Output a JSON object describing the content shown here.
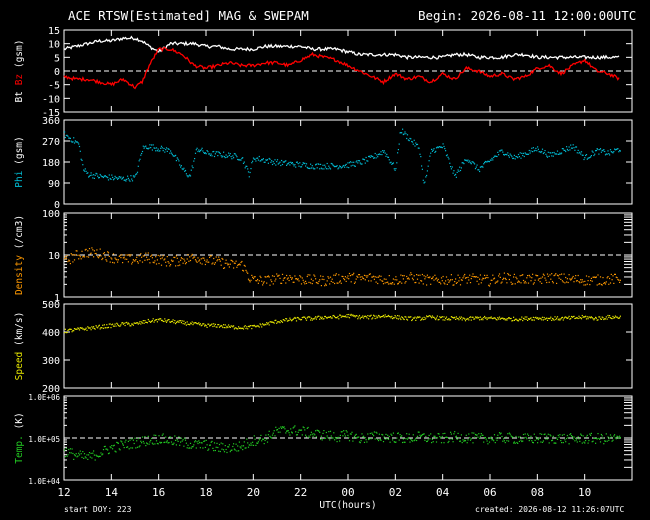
{
  "header": {
    "title": "ACE RTSW[Estimated] MAG & SWEPAM",
    "begin": "Begin: 2026-08-11 12:00:00UTC"
  },
  "footer": {
    "start_doy": "start DOY: 223",
    "created": "created: 2026-08-12 11:26:07UTC"
  },
  "colors": {
    "background": "#000000",
    "axes": "#ffffff",
    "bt": "#ffffff",
    "bz": "#ff0000",
    "phi": "#00bcd4",
    "density": "#ff9900",
    "speed": "#e6e600",
    "temp": "#22cc22"
  },
  "chart_data": [
    {
      "type": "line",
      "id": "mag",
      "ylabel_parts": [
        "Bt",
        "Bz",
        "(gsm)"
      ],
      "ylim": [
        -15,
        15
      ],
      "yticks": [
        15,
        10,
        5,
        0,
        -5,
        -10,
        -15
      ],
      "ref_line": 0,
      "series": [
        {
          "name": "Bt",
          "x": [
            0,
            0.5,
            1,
            1.5,
            2,
            2.5,
            3,
            3.3,
            3.6,
            4,
            4.5,
            5,
            5.5,
            6,
            6.5,
            7,
            7.5,
            8,
            8.5,
            9,
            9.5,
            10,
            10.5,
            11,
            11.5,
            12,
            12.5,
            13,
            13.5,
            14,
            14.5,
            15,
            15.5,
            16,
            16.5,
            17,
            17.5,
            18,
            18.5,
            19,
            19.5,
            20,
            20.5,
            21,
            21.5,
            22,
            22.5,
            23,
            23.5
          ],
          "values": [
            8,
            9,
            10,
            11,
            11,
            12,
            12,
            11,
            9,
            7,
            10,
            10,
            10,
            9,
            9,
            8,
            8,
            8,
            9,
            9,
            9,
            9,
            8,
            8,
            8,
            7,
            6,
            6,
            6,
            6,
            5,
            5,
            5,
            5,
            6,
            6,
            5,
            5,
            5,
            6,
            6,
            5,
            5,
            5,
            5,
            5,
            5,
            5,
            5
          ]
        },
        {
          "name": "Bz",
          "x": [
            0,
            0.5,
            1,
            1.5,
            2,
            2.5,
            3,
            3.3,
            3.6,
            4,
            4.5,
            5,
            5.5,
            6,
            6.5,
            7,
            7.5,
            8,
            8.5,
            9,
            9.5,
            10,
            10.5,
            11,
            11.5,
            12,
            12.5,
            13,
            13.5,
            14,
            14.5,
            15,
            15.5,
            16,
            16.5,
            17,
            17.5,
            18,
            18.5,
            19,
            19.5,
            20,
            20.5,
            21,
            21.5,
            22,
            22.5,
            23,
            23.5
          ],
          "values": [
            -2,
            -3,
            -3,
            -4,
            -5,
            -3,
            -6,
            -4,
            2,
            8,
            8,
            6,
            2,
            1,
            2,
            3,
            2,
            2,
            3,
            3,
            2,
            4,
            6,
            5,
            4,
            2,
            0,
            -2,
            -4,
            -1,
            -3,
            -2,
            -4,
            -1,
            -3,
            1,
            0,
            -2,
            -1,
            -3,
            -2,
            1,
            2,
            -1,
            2,
            4,
            0,
            -1,
            -3
          ]
        }
      ]
    },
    {
      "type": "scatter",
      "id": "phi",
      "ylabel_parts": [
        "Phi",
        "(gsm)"
      ],
      "ylim": [
        0,
        360
      ],
      "yticks": [
        360,
        270,
        180,
        90,
        0
      ],
      "series": [
        {
          "name": "Phi",
          "x": [
            0,
            0.3,
            0.6,
            0.8,
            1,
            1.5,
            2,
            2.5,
            3,
            3.3,
            3.5,
            4,
            4.5,
            5,
            5.3,
            5.6,
            6,
            6.5,
            7,
            7.5,
            7.8,
            8,
            8.5,
            9,
            9.5,
            10,
            10.5,
            11,
            11.5,
            12,
            12.5,
            13,
            13.5,
            14,
            14.2,
            14.6,
            15,
            15.2,
            15.5,
            16,
            16.5,
            17,
            17.5,
            18,
            18.5,
            19,
            19.5,
            20,
            20.5,
            21,
            21.5,
            22,
            22.5,
            23,
            23.5
          ],
          "values": [
            300,
            280,
            260,
            150,
            130,
            120,
            115,
            110,
            115,
            240,
            250,
            240,
            230,
            150,
            120,
            240,
            220,
            215,
            210,
            200,
            130,
            200,
            190,
            180,
            175,
            170,
            165,
            165,
            165,
            170,
            180,
            200,
            230,
            150,
            320,
            280,
            240,
            80,
            230,
            250,
            120,
            200,
            150,
            190,
            230,
            200,
            220,
            240,
            210,
            230,
            250,
            200,
            230,
            220,
            240
          ]
        }
      ]
    },
    {
      "type": "scatter",
      "id": "density",
      "ylabel_parts": [
        "Density",
        "(/cm3)"
      ],
      "scale": "log",
      "ylim": [
        1,
        100
      ],
      "yticks": [
        100,
        10,
        1
      ],
      "ref_line": 10,
      "series": [
        {
          "name": "Density",
          "x": [
            0,
            0.5,
            1,
            1.5,
            2,
            2.5,
            3,
            3.5,
            4,
            4.5,
            5,
            5.5,
            6,
            6.5,
            7,
            7.5,
            7.8,
            8,
            8.5,
            9,
            9.5,
            10,
            10.5,
            11,
            11.5,
            12,
            12.5,
            13,
            13.5,
            14,
            14.5,
            15,
            15.5,
            16,
            16.5,
            17,
            17.5,
            18,
            18.5,
            19,
            19.5,
            20,
            20.5,
            21,
            21.5,
            22,
            22.5,
            23,
            23.5
          ],
          "values": [
            7,
            10,
            12,
            11,
            9,
            8,
            8,
            9,
            8,
            7,
            8,
            9,
            8,
            7,
            6,
            6,
            3,
            2.6,
            2.5,
            2.8,
            3,
            2.7,
            2.6,
            2.5,
            2.8,
            3,
            2.8,
            3,
            2.7,
            2.6,
            3,
            2.8,
            2.5,
            2.7,
            2.6,
            2.8,
            2.7,
            2.5,
            3,
            2.7,
            2.8,
            2.6,
            3,
            2.8,
            2.7,
            2.6,
            2.6,
            2.7,
            2.8
          ]
        }
      ]
    },
    {
      "type": "scatter",
      "id": "speed",
      "ylabel_parts": [
        "Speed",
        "(km/s)"
      ],
      "ylim": [
        200,
        500
      ],
      "yticks": [
        500,
        400,
        300,
        200
      ],
      "series": [
        {
          "name": "Speed",
          "x": [
            0,
            0.5,
            1,
            1.5,
            2,
            2.5,
            3,
            3.5,
            4,
            4.5,
            5,
            5.5,
            6,
            6.5,
            7,
            7.5,
            8,
            8.5,
            9,
            9.5,
            10,
            10.5,
            11,
            11.5,
            12,
            12.5,
            13,
            13.5,
            14,
            14.5,
            15,
            15.5,
            16,
            16.5,
            17,
            17.5,
            18,
            18.5,
            19,
            19.5,
            20,
            20.5,
            21,
            21.5,
            22,
            22.5,
            23,
            23.5
          ],
          "values": [
            405,
            410,
            415,
            420,
            425,
            430,
            430,
            440,
            445,
            440,
            435,
            430,
            425,
            425,
            420,
            418,
            420,
            430,
            440,
            445,
            450,
            450,
            455,
            455,
            460,
            455,
            455,
            460,
            455,
            450,
            450,
            455,
            450,
            450,
            448,
            452,
            450,
            450,
            448,
            450,
            452,
            450,
            450,
            452,
            455,
            450,
            455,
            455
          ]
        }
      ]
    },
    {
      "type": "scatter",
      "id": "temp",
      "ylabel_parts": [
        "Temp.",
        "(K)"
      ],
      "scale": "log",
      "ylim": [
        10000,
        1000000
      ],
      "yticks": [
        1000000,
        100000,
        10000
      ],
      "ytick_labels": [
        "1.0E+06",
        "1.0E+05",
        "1.0E+04"
      ],
      "ref_line": 100000,
      "series": [
        {
          "name": "Temp",
          "x": [
            0,
            0.5,
            1,
            1.5,
            2,
            2.5,
            3,
            3.5,
            4,
            4.5,
            5,
            5.5,
            6,
            6.5,
            7,
            7.5,
            8,
            8.5,
            9,
            9.5,
            10,
            10.5,
            11,
            11.5,
            12,
            12.5,
            13,
            13.5,
            14,
            14.5,
            15,
            15.5,
            16,
            16.5,
            17,
            17.5,
            18,
            18.5,
            19,
            19.5,
            20,
            20.5,
            21,
            21.5,
            22,
            22.5,
            23,
            23.5
          ],
          "values": [
            50000,
            40000,
            35000,
            45000,
            60000,
            70000,
            80000,
            90000,
            100000,
            90000,
            80000,
            70000,
            70000,
            60000,
            60000,
            65000,
            90000,
            100000,
            150000,
            160000,
            150000,
            130000,
            120000,
            110000,
            120000,
            100000,
            110000,
            110000,
            105000,
            100000,
            110000,
            100000,
            100000,
            110000,
            105000,
            100000,
            100000,
            105000,
            100000,
            98000,
            100000,
            102000,
            100000,
            98000,
            100000,
            100000,
            98000,
            100000
          ]
        }
      ]
    }
  ],
  "xaxis": {
    "label": "UTC(hours)",
    "xlim": [
      0,
      24
    ],
    "ticks": [
      0,
      2,
      4,
      6,
      8,
      10,
      12,
      14,
      16,
      18,
      20,
      22
    ],
    "tick_labels": [
      "12",
      "14",
      "16",
      "18",
      "20",
      "22",
      "00",
      "02",
      "04",
      "06",
      "08",
      "10"
    ]
  }
}
